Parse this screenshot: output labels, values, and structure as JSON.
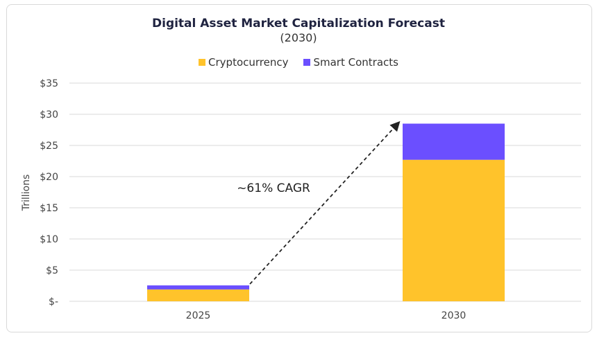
{
  "chart_data": {
    "type": "bar",
    "stacked": true,
    "title": "Digital Asset Market Capitalization Forecast",
    "subtitle": "(2030)",
    "xlabel": "",
    "ylabel": "Trillions",
    "categories": [
      "2025",
      "2030"
    ],
    "series": [
      {
        "name": "Cryptocurrency",
        "color": "#FFC32B",
        "values": [
          1.9,
          22.7
        ]
      },
      {
        "name": "Smart Contracts",
        "color": "#6B4FFF",
        "values": [
          0.65,
          5.8
        ]
      }
    ],
    "ylim": [
      0,
      35
    ],
    "yticks": [
      0,
      5,
      10,
      15,
      20,
      25,
      30,
      35
    ],
    "ytick_labels": [
      "$-",
      "$5",
      "$10",
      "$15",
      "$20",
      "$25",
      "$30",
      "$35"
    ],
    "grid": true,
    "legend": "top",
    "annotation": {
      "text": "~61% CAGR",
      "arrow_from": "2025",
      "arrow_to": "2030"
    }
  }
}
